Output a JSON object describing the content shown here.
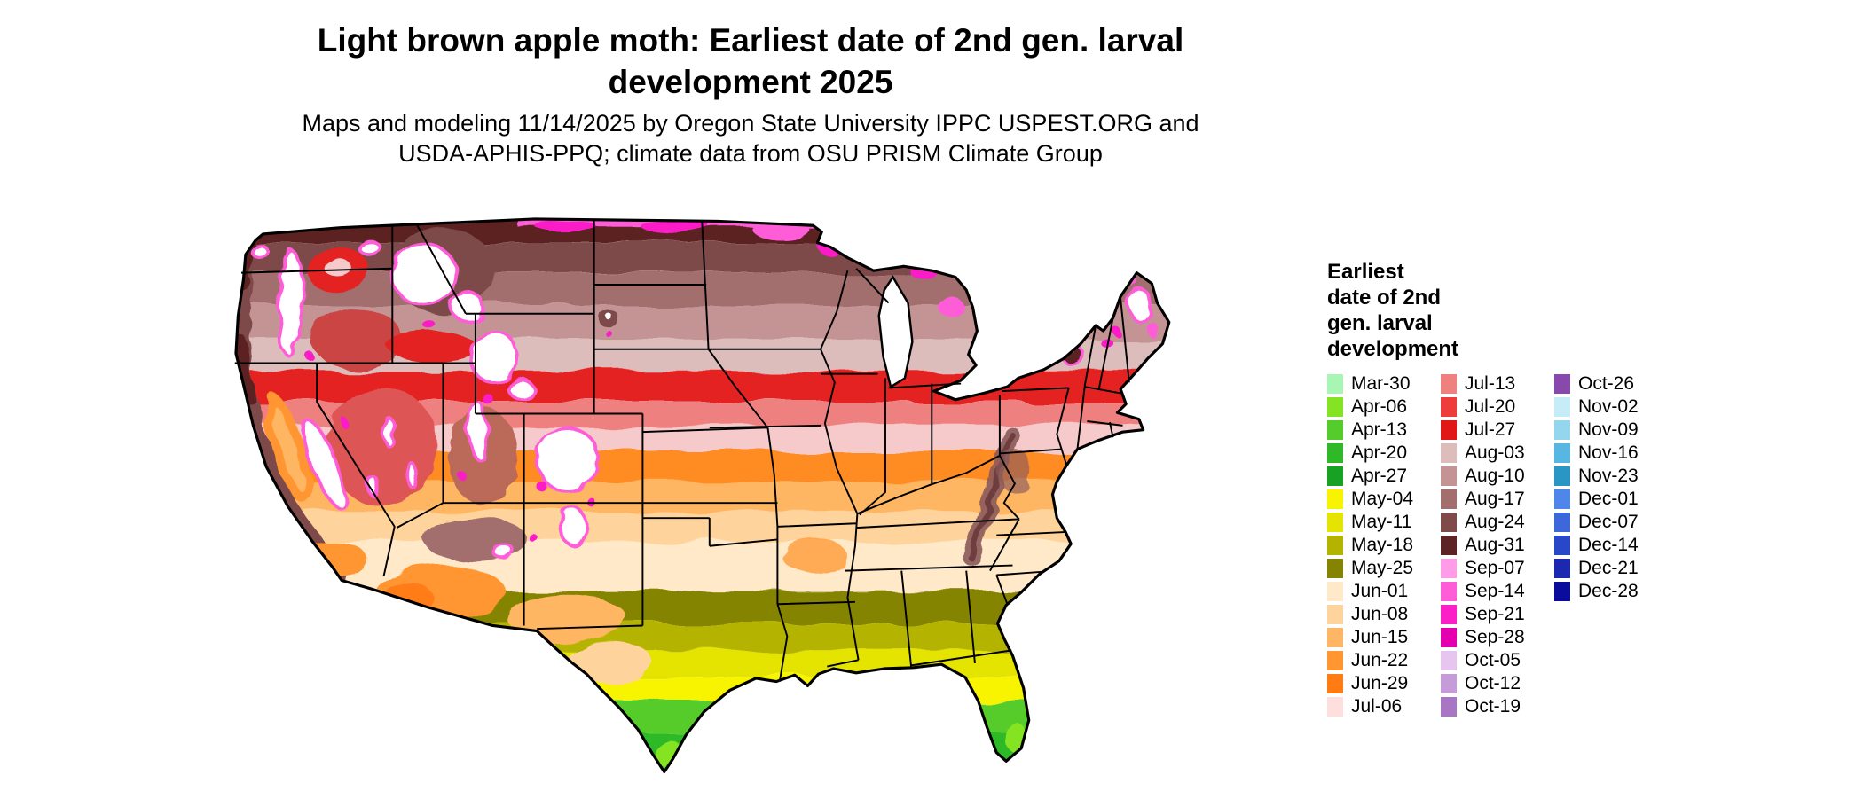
{
  "title": {
    "line1": "Light brown apple moth: Earliest date of 2nd gen. larval",
    "line2": "development 2025"
  },
  "subtitle": {
    "line1": "Maps and modeling 11/14/2025 by Oregon State University IPPC USPEST.ORG and",
    "line2": "USDA-APHIS-PPQ; climate data from OSU PRISM Climate Group"
  },
  "legend": {
    "title_lines": [
      "Earliest",
      "date of 2nd",
      "gen. larval",
      "development"
    ],
    "columns": [
      [
        {
          "label": "Mar-30",
          "color": "#a8f5b4"
        },
        {
          "label": "Apr-06",
          "color": "#84e424"
        },
        {
          "label": "Apr-13",
          "color": "#54cc2c"
        },
        {
          "label": "Apr-20",
          "color": "#2eba28"
        },
        {
          "label": "Apr-27",
          "color": "#18a224"
        },
        {
          "label": "May-04",
          "color": "#f8f400"
        },
        {
          "label": "May-11",
          "color": "#e4e400"
        },
        {
          "label": "May-18",
          "color": "#b4b400"
        },
        {
          "label": "May-25",
          "color": "#848400"
        },
        {
          "label": "Jun-01",
          "color": "#ffe9c8"
        },
        {
          "label": "Jun-08",
          "color": "#ffd49c"
        },
        {
          "label": "Jun-15",
          "color": "#ffb664"
        },
        {
          "label": "Jun-22",
          "color": "#ff9632"
        },
        {
          "label": "Jun-29",
          "color": "#ff7c14"
        },
        {
          "label": "Jul-06",
          "color": "#ffdede"
        }
      ],
      [
        {
          "label": "Jul-13",
          "color": "#ef8080"
        },
        {
          "label": "Jul-20",
          "color": "#ee3c3c"
        },
        {
          "label": "Jul-27",
          "color": "#e01818"
        },
        {
          "label": "Aug-03",
          "color": "#ddbcbc"
        },
        {
          "label": "Aug-10",
          "color": "#c49494"
        },
        {
          "label": "Aug-17",
          "color": "#a26e6e"
        },
        {
          "label": "Aug-24",
          "color": "#7e4a4a"
        },
        {
          "label": "Aug-31",
          "color": "#5c2424"
        },
        {
          "label": "Sep-07",
          "color": "#ff9ce8"
        },
        {
          "label": "Sep-14",
          "color": "#ff5cd8"
        },
        {
          "label": "Sep-21",
          "color": "#fb1fc8"
        },
        {
          "label": "Sep-28",
          "color": "#e400ae"
        },
        {
          "label": "Oct-05",
          "color": "#e6c6ee"
        },
        {
          "label": "Oct-12",
          "color": "#c69cd8"
        },
        {
          "label": "Oct-19",
          "color": "#a876c2"
        }
      ],
      [
        {
          "label": "Oct-26",
          "color": "#8848ac"
        },
        {
          "label": "Nov-02",
          "color": "#c6ecf8"
        },
        {
          "label": "Nov-09",
          "color": "#94d6ee"
        },
        {
          "label": "Nov-16",
          "color": "#58b6e2"
        },
        {
          "label": "Nov-23",
          "color": "#2a96c6"
        },
        {
          "label": "Dec-01",
          "color": "#4e86ea"
        },
        {
          "label": "Dec-07",
          "color": "#3c68dc"
        },
        {
          "label": "Dec-14",
          "color": "#2848c8"
        },
        {
          "label": "Dec-21",
          "color": "#1c28b0"
        },
        {
          "label": "Dec-28",
          "color": "#0c0c9c"
        }
      ]
    ]
  }
}
